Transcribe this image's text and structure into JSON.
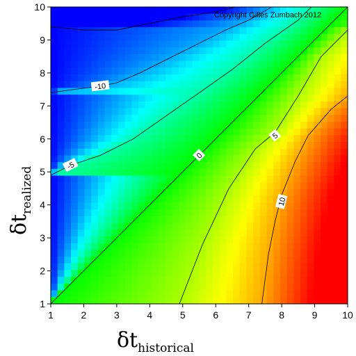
{
  "chart_data": {
    "type": "heatmap",
    "title": "",
    "xlabel_main": "δt",
    "xlabel_sub": "historical",
    "ylabel_main": "δt",
    "ylabel_sub": "realized",
    "xlim": [
      1,
      10
    ],
    "ylim": [
      1,
      10
    ],
    "x_ticks": [
      1,
      2,
      3,
      4,
      5,
      6,
      7,
      8,
      9,
      10
    ],
    "y_ticks": [
      1,
      2,
      3,
      4,
      5,
      6,
      7,
      8,
      9,
      10
    ],
    "colorscale": [
      "#0000ff",
      "#00ffff",
      "#00ff00",
      "#ffff00",
      "#ff0000"
    ],
    "value_range": [
      -15,
      15
    ],
    "annotation": "Copyright Gilles Zumbach 2012",
    "contours": [
      {
        "level": 10,
        "label": "10",
        "points": [
          [
            7.4,
            1.0
          ],
          [
            7.6,
            2.5
          ],
          [
            7.8,
            3.5
          ],
          [
            8.0,
            4.3
          ],
          [
            8.4,
            5.3
          ],
          [
            8.8,
            6.1
          ],
          [
            9.5,
            6.9
          ],
          [
            10.0,
            7.3
          ]
        ],
        "label_at": [
          8.0,
          4.1
        ]
      },
      {
        "level": 5,
        "label": "5",
        "points": [
          [
            4.9,
            1.0
          ],
          [
            5.6,
            2.8
          ],
          [
            6.4,
            4.5
          ],
          [
            7.2,
            5.7
          ],
          [
            7.8,
            6.2
          ],
          [
            8.5,
            7.3
          ],
          [
            9.2,
            8.5
          ],
          [
            10.0,
            9.3
          ]
        ],
        "label_at": [
          7.8,
          6.1
        ]
      },
      {
        "level": 0,
        "label": "0",
        "points": [
          [
            1.0,
            1.0
          ],
          [
            2.0,
            2.0
          ],
          [
            3.0,
            3.0
          ],
          [
            4.0,
            4.0
          ],
          [
            5.0,
            5.0
          ],
          [
            6.0,
            6.0
          ],
          [
            7.0,
            7.0
          ],
          [
            8.0,
            8.0
          ],
          [
            9.0,
            9.0
          ],
          [
            10.0,
            10.0
          ]
        ],
        "label_at": [
          5.5,
          5.5
        ]
      },
      {
        "level": -5,
        "label": "-5",
        "points": [
          [
            1.0,
            4.9
          ],
          [
            1.6,
            5.2
          ],
          [
            2.5,
            5.5
          ],
          [
            3.5,
            6.0
          ],
          [
            4.5,
            6.7
          ],
          [
            5.5,
            7.4
          ],
          [
            6.5,
            8.1
          ],
          [
            7.5,
            8.9
          ],
          [
            8.5,
            9.6
          ],
          [
            8.9,
            10.0
          ]
        ],
        "label_at": [
          1.6,
          5.2
        ]
      },
      {
        "level": -10,
        "label": "-10",
        "points": [
          [
            1.0,
            7.4
          ],
          [
            1.7,
            7.5
          ],
          [
            2.5,
            7.6
          ],
          [
            3.0,
            7.7
          ],
          [
            3.7,
            8.0
          ],
          [
            4.5,
            8.4
          ],
          [
            5.5,
            8.9
          ],
          [
            6.3,
            9.3
          ],
          [
            7.0,
            9.6
          ],
          [
            7.7,
            10.0
          ]
        ],
        "label_at": [
          2.5,
          7.6
        ]
      },
      {
        "level": -15,
        "label": "",
        "points": [
          [
            1.0,
            9.4
          ],
          [
            2.0,
            9.3
          ],
          [
            3.0,
            9.3
          ],
          [
            4.0,
            9.5
          ],
          [
            5.0,
            9.7
          ],
          [
            6.0,
            9.85
          ],
          [
            6.6,
            10.0
          ]
        ],
        "label_at": null
      }
    ]
  }
}
